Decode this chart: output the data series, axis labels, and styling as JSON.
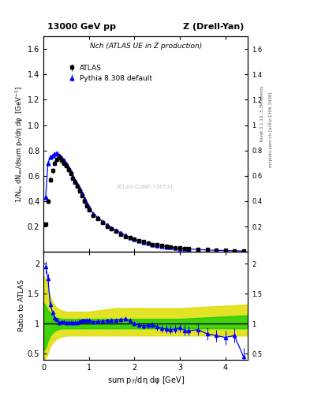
{
  "title_top": "13000 GeV pp",
  "title_right": "Z (Drell-Yan)",
  "panel_title": "Nch (ATLAS UE in Z production)",
  "ylabel_main": "1/N$_{ev}$ dN$_{ev}$/dsum p$_T$/dη dφ  [GeV$^{-1}$]",
  "ylabel_ratio": "Ratio to ATLAS",
  "xlabel": "sum p$_T$/dη dφ [GeV]",
  "right_label_top": "Rivet 3.1.10, 3.3M events",
  "right_label_mid": "mcplots.cern.ch [arXiv:1306.3436]",
  "watermark": "ATLAS-CONF-736531",
  "atlas_x": [
    0.05,
    0.1,
    0.15,
    0.2,
    0.25,
    0.3,
    0.35,
    0.4,
    0.45,
    0.5,
    0.55,
    0.6,
    0.65,
    0.7,
    0.75,
    0.8,
    0.85,
    0.9,
    0.95,
    1.0,
    1.1,
    1.2,
    1.3,
    1.4,
    1.5,
    1.6,
    1.7,
    1.8,
    1.9,
    2.0,
    2.1,
    2.2,
    2.3,
    2.4,
    2.5,
    2.6,
    2.7,
    2.8,
    2.9,
    3.0,
    3.1,
    3.2,
    3.4,
    3.6,
    3.8,
    4.0,
    4.2,
    4.4
  ],
  "atlas_y": [
    0.22,
    0.4,
    0.57,
    0.64,
    0.7,
    0.73,
    0.75,
    0.72,
    0.7,
    0.68,
    0.65,
    0.62,
    0.58,
    0.55,
    0.52,
    0.48,
    0.44,
    0.4,
    0.36,
    0.33,
    0.29,
    0.26,
    0.23,
    0.2,
    0.18,
    0.16,
    0.14,
    0.12,
    0.11,
    0.1,
    0.09,
    0.08,
    0.07,
    0.06,
    0.055,
    0.05,
    0.045,
    0.04,
    0.035,
    0.03,
    0.028,
    0.025,
    0.02,
    0.018,
    0.015,
    0.013,
    0.01,
    0.008
  ],
  "atlas_yerr": [
    0.02,
    0.02,
    0.02,
    0.02,
    0.02,
    0.02,
    0.02,
    0.02,
    0.02,
    0.02,
    0.02,
    0.015,
    0.015,
    0.015,
    0.015,
    0.012,
    0.012,
    0.012,
    0.01,
    0.01,
    0.008,
    0.008,
    0.007,
    0.007,
    0.006,
    0.006,
    0.005,
    0.005,
    0.004,
    0.004,
    0.004,
    0.003,
    0.003,
    0.003,
    0.003,
    0.003,
    0.003,
    0.002,
    0.002,
    0.002,
    0.002,
    0.002,
    0.002,
    0.002,
    0.001,
    0.001,
    0.001,
    0.001
  ],
  "pythia_x": [
    0.05,
    0.1,
    0.15,
    0.2,
    0.25,
    0.3,
    0.35,
    0.4,
    0.45,
    0.5,
    0.55,
    0.6,
    0.65,
    0.7,
    0.75,
    0.8,
    0.85,
    0.9,
    0.95,
    1.0,
    1.1,
    1.2,
    1.3,
    1.4,
    1.5,
    1.6,
    1.7,
    1.8,
    1.9,
    2.0,
    2.1,
    2.2,
    2.3,
    2.4,
    2.5,
    2.6,
    2.7,
    2.8,
    2.9,
    3.0,
    3.1,
    3.2,
    3.4,
    3.6,
    3.8,
    4.0,
    4.2,
    4.4
  ],
  "pythia_y": [
    0.43,
    0.7,
    0.75,
    0.76,
    0.77,
    0.78,
    0.76,
    0.74,
    0.72,
    0.69,
    0.66,
    0.63,
    0.59,
    0.56,
    0.53,
    0.5,
    0.46,
    0.42,
    0.38,
    0.35,
    0.3,
    0.27,
    0.24,
    0.21,
    0.19,
    0.17,
    0.15,
    0.13,
    0.115,
    0.1,
    0.088,
    0.077,
    0.068,
    0.059,
    0.052,
    0.046,
    0.041,
    0.036,
    0.032,
    0.028,
    0.025,
    0.022,
    0.018,
    0.015,
    0.012,
    0.01,
    0.008,
    0.006
  ],
  "pythia_yerr": [
    0.005,
    0.006,
    0.006,
    0.006,
    0.006,
    0.006,
    0.005,
    0.005,
    0.005,
    0.005,
    0.005,
    0.004,
    0.004,
    0.004,
    0.004,
    0.003,
    0.003,
    0.003,
    0.003,
    0.003,
    0.002,
    0.002,
    0.002,
    0.002,
    0.002,
    0.002,
    0.001,
    0.001,
    0.001,
    0.001,
    0.001,
    0.001,
    0.001,
    0.001,
    0.001,
    0.001,
    0.001,
    0.001,
    0.001,
    0.001,
    0.001,
    0.001,
    0.001,
    0.001,
    0.001,
    0.001,
    0.001,
    0.001
  ],
  "ratio_x": [
    0.05,
    0.1,
    0.15,
    0.2,
    0.25,
    0.3,
    0.35,
    0.4,
    0.45,
    0.5,
    0.55,
    0.6,
    0.65,
    0.7,
    0.75,
    0.8,
    0.85,
    0.9,
    0.95,
    1.0,
    1.1,
    1.2,
    1.3,
    1.4,
    1.5,
    1.6,
    1.7,
    1.8,
    1.9,
    2.0,
    2.1,
    2.2,
    2.3,
    2.4,
    2.5,
    2.6,
    2.7,
    2.8,
    2.9,
    3.0,
    3.1,
    3.2,
    3.4,
    3.6,
    3.8,
    4.0,
    4.2,
    4.4
  ],
  "ratio_y": [
    1.95,
    1.75,
    1.32,
    1.19,
    1.1,
    1.07,
    1.01,
    1.03,
    1.03,
    1.01,
    1.02,
    1.02,
    1.02,
    1.02,
    1.02,
    1.04,
    1.05,
    1.05,
    1.06,
    1.06,
    1.03,
    1.04,
    1.04,
    1.05,
    1.06,
    1.06,
    1.07,
    1.08,
    1.05,
    1.0,
    0.98,
    0.96,
    0.97,
    0.98,
    0.95,
    0.92,
    0.91,
    0.9,
    0.91,
    0.93,
    0.89,
    0.88,
    0.9,
    0.83,
    0.8,
    0.77,
    0.8,
    0.45
  ],
  "ratio_yerr": [
    0.1,
    0.08,
    0.05,
    0.04,
    0.03,
    0.03,
    0.03,
    0.03,
    0.03,
    0.03,
    0.03,
    0.03,
    0.03,
    0.03,
    0.03,
    0.03,
    0.03,
    0.03,
    0.03,
    0.03,
    0.03,
    0.03,
    0.03,
    0.03,
    0.03,
    0.03,
    0.04,
    0.04,
    0.04,
    0.04,
    0.05,
    0.05,
    0.05,
    0.05,
    0.06,
    0.06,
    0.06,
    0.07,
    0.07,
    0.07,
    0.08,
    0.08,
    0.09,
    0.1,
    0.1,
    0.12,
    0.12,
    0.15
  ],
  "band_x": [
    0.0,
    0.05,
    0.1,
    0.15,
    0.2,
    0.25,
    0.3,
    0.35,
    0.4,
    0.45,
    0.5,
    0.6,
    0.7,
    0.8,
    0.9,
    1.0,
    1.2,
    1.4,
    1.6,
    1.8,
    2.0,
    2.2,
    2.4,
    2.6,
    2.8,
    3.0,
    3.5,
    4.0,
    4.5
  ],
  "green_lo": [
    0.55,
    0.6,
    0.72,
    0.8,
    0.85,
    0.88,
    0.9,
    0.91,
    0.92,
    0.92,
    0.92,
    0.92,
    0.92,
    0.92,
    0.92,
    0.92,
    0.92,
    0.92,
    0.92,
    0.92,
    0.92,
    0.92,
    0.92,
    0.92,
    0.92,
    0.92,
    0.92,
    0.92,
    0.92
  ],
  "green_hi": [
    1.35,
    1.3,
    1.22,
    1.18,
    1.14,
    1.11,
    1.1,
    1.09,
    1.08,
    1.08,
    1.08,
    1.08,
    1.08,
    1.08,
    1.08,
    1.08,
    1.08,
    1.08,
    1.08,
    1.08,
    1.08,
    1.08,
    1.08,
    1.08,
    1.08,
    1.08,
    1.1,
    1.12,
    1.14
  ],
  "yellow_lo": [
    0.4,
    0.42,
    0.52,
    0.62,
    0.68,
    0.72,
    0.75,
    0.77,
    0.78,
    0.79,
    0.8,
    0.8,
    0.8,
    0.8,
    0.8,
    0.8,
    0.8,
    0.8,
    0.8,
    0.8,
    0.8,
    0.8,
    0.8,
    0.8,
    0.8,
    0.8,
    0.8,
    0.8,
    0.8
  ],
  "yellow_hi": [
    1.8,
    1.75,
    1.6,
    1.45,
    1.36,
    1.3,
    1.26,
    1.24,
    1.22,
    1.21,
    1.2,
    1.2,
    1.2,
    1.2,
    1.2,
    1.2,
    1.22,
    1.24,
    1.26,
    1.26,
    1.26,
    1.26,
    1.26,
    1.26,
    1.26,
    1.26,
    1.28,
    1.3,
    1.32
  ],
  "ylim_main": [
    0.0,
    1.7
  ],
  "ylim_ratio": [
    0.4,
    2.2
  ],
  "xlim": [
    0.0,
    4.5
  ],
  "atlas_color": "#000000",
  "pythia_color": "#0000ff",
  "green_color": "#00cc00",
  "yellow_color": "#dddd00",
  "bg_color": "#ffffff"
}
